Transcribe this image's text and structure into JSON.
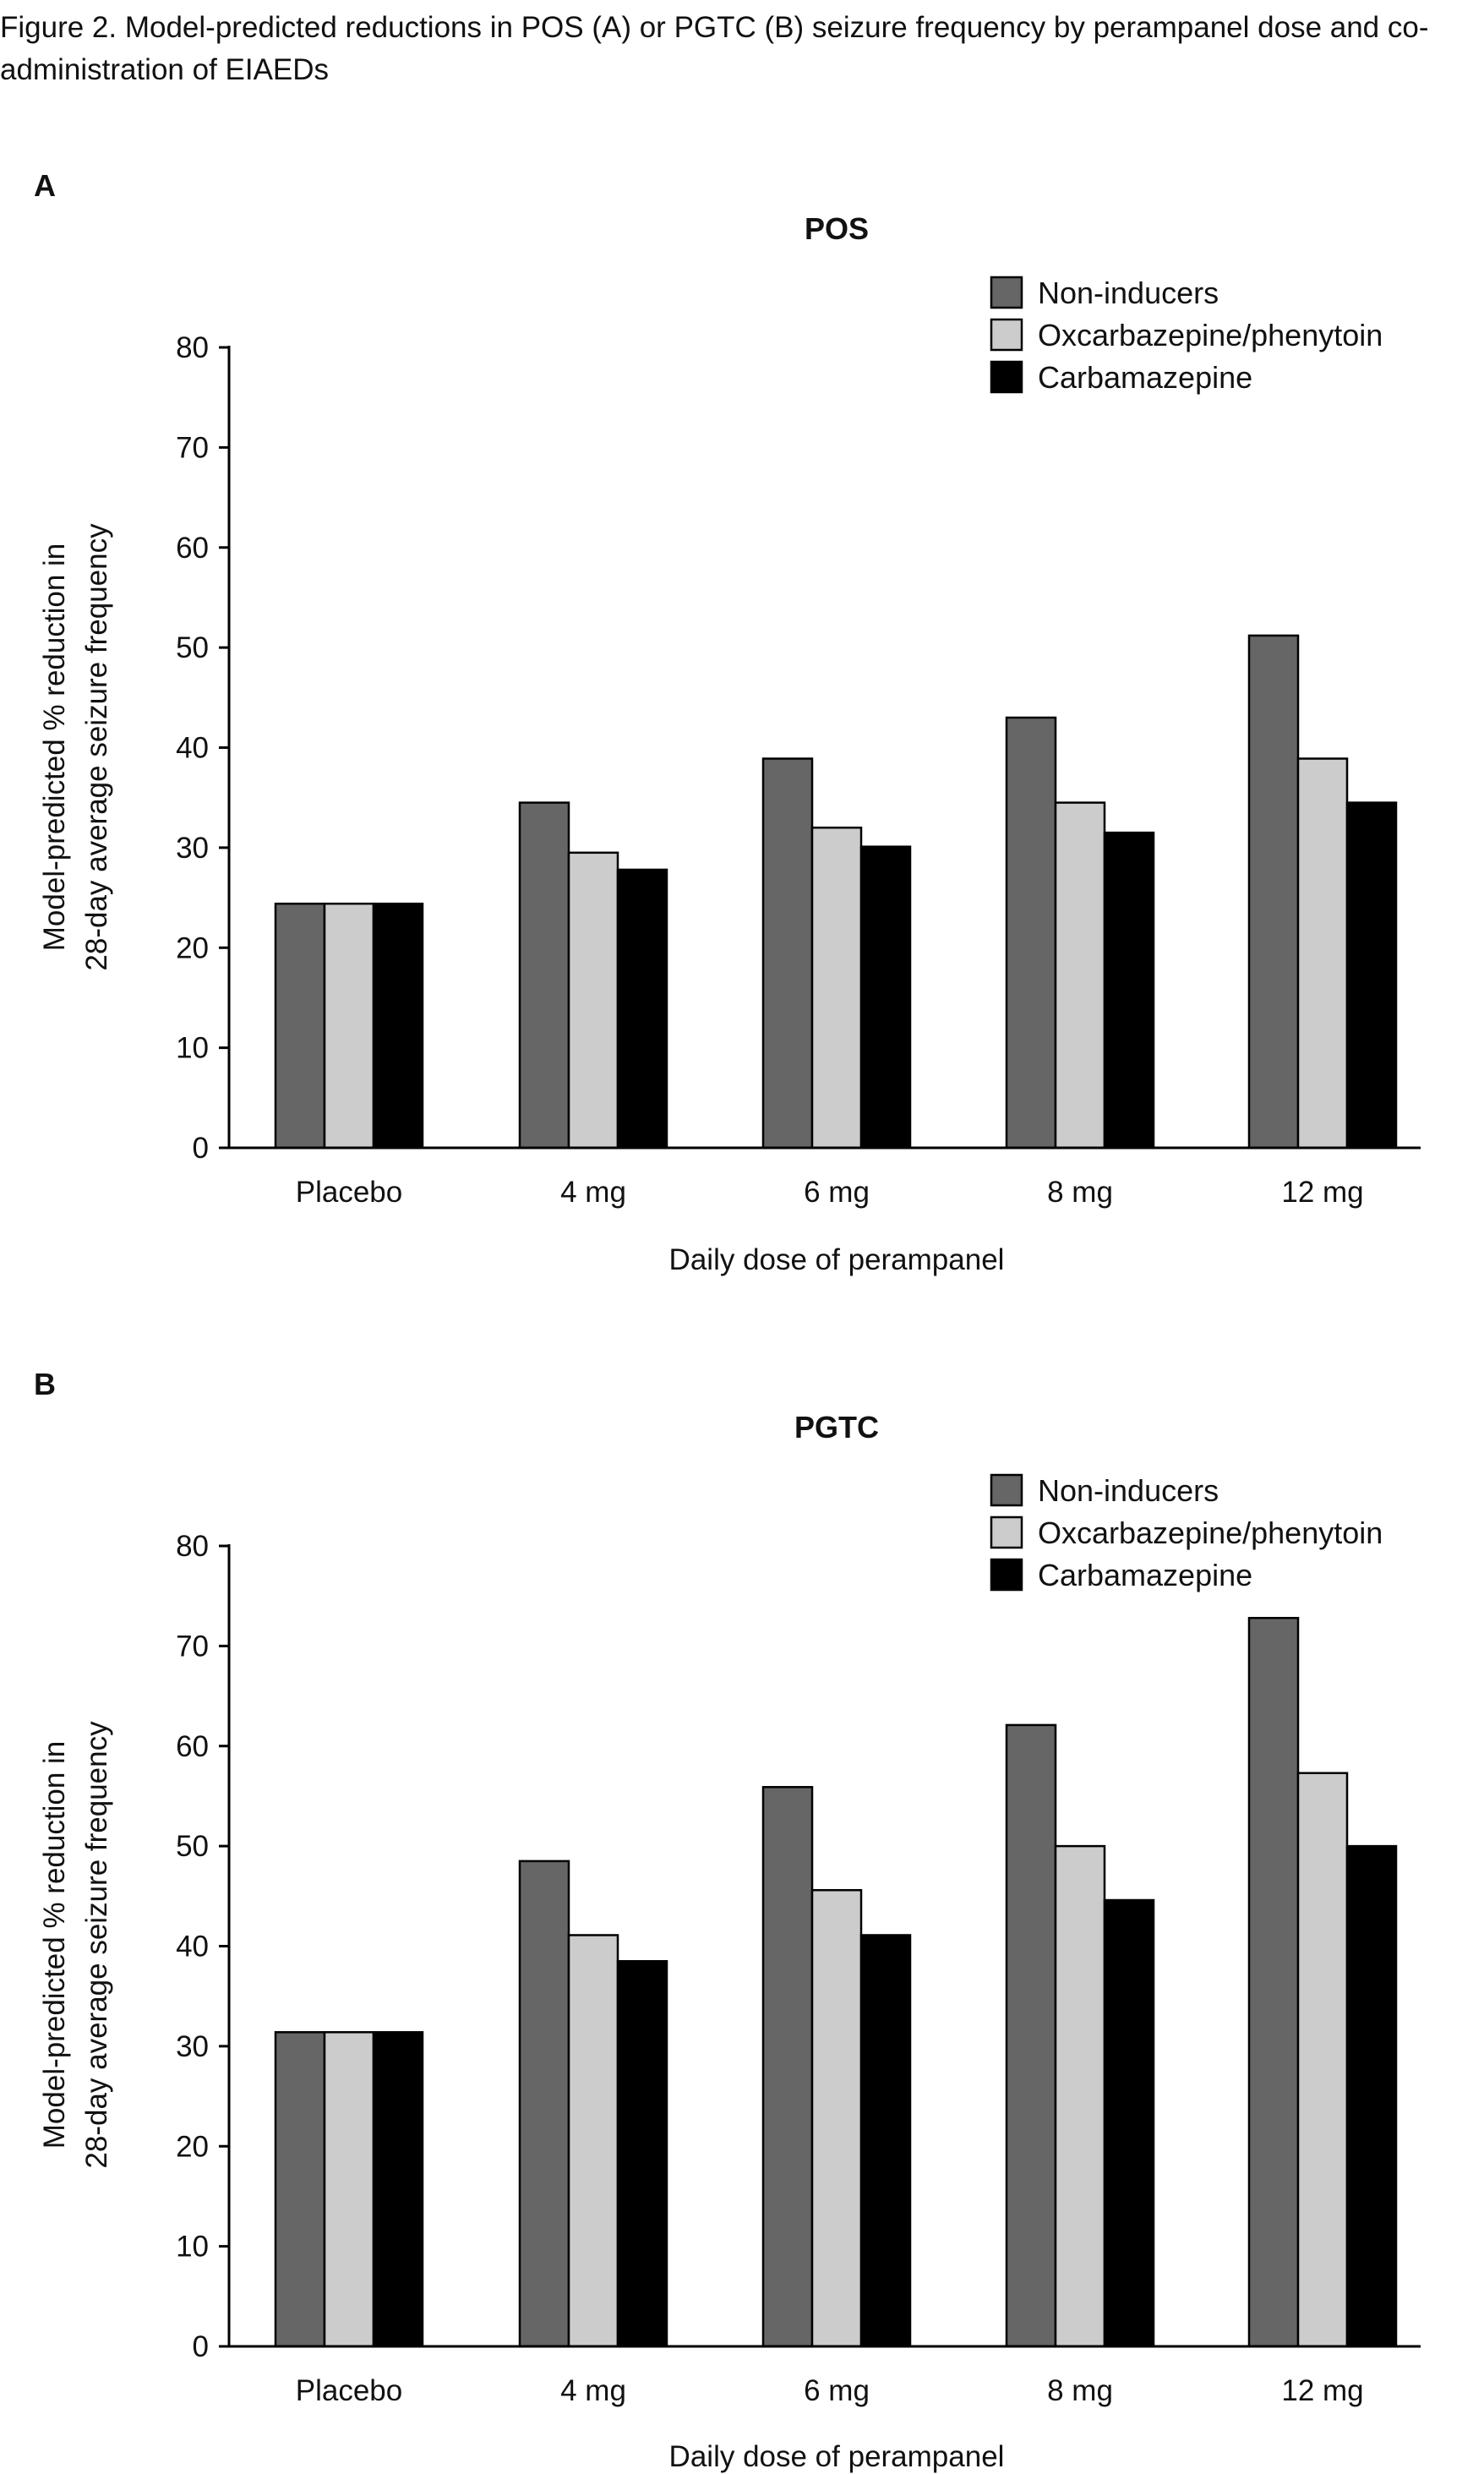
{
  "caption": "Figure 2. Model-predicted reductions in POS (A) or PGTC (B) seizure frequency by perampanel dose and co-administration of EIAEDs",
  "colors": {
    "Non-inducers": "#666666",
    "Oxcarbazepine/phenytoin": "#cccccc",
    "Carbamazepine": "#000000"
  },
  "chart_data": [
    {
      "type": "bar",
      "panel": "A",
      "title": "POS",
      "xlabel": "Daily dose of perampanel",
      "ylabel": [
        "Model-predicted % reduction in",
        "28-day average seizure frequency"
      ],
      "ylim": [
        0,
        80
      ],
      "yticks": [
        0,
        10,
        20,
        30,
        40,
        50,
        60,
        70,
        80
      ],
      "grid": false,
      "legend_position": "top-right",
      "categories": [
        "Placebo",
        "4 mg",
        "6 mg",
        "8 mg",
        "12 mg"
      ],
      "series": [
        {
          "name": "Non-inducers",
          "values": [
            24.4,
            34.5,
            38.9,
            43.0,
            51.2
          ]
        },
        {
          "name": "Oxcarbazepine/phenytoin",
          "values": [
            24.4,
            29.5,
            32.0,
            34.5,
            38.9
          ]
        },
        {
          "name": "Carbamazepine",
          "values": [
            24.4,
            27.8,
            30.1,
            31.5,
            34.5
          ]
        }
      ]
    },
    {
      "type": "bar",
      "panel": "B",
      "title": "PGTC",
      "xlabel": "Daily dose of perampanel",
      "ylabel": [
        "Model-predicted % reduction in",
        "28-day average seizure frequency"
      ],
      "ylim": [
        0,
        80
      ],
      "yticks": [
        0,
        10,
        20,
        30,
        40,
        50,
        60,
        70,
        80
      ],
      "grid": false,
      "legend_position": "top-right",
      "categories": [
        "Placebo",
        "4 mg",
        "6 mg",
        "8 mg",
        "12 mg"
      ],
      "series": [
        {
          "name": "Non-inducers",
          "values": [
            31.4,
            48.5,
            55.9,
            62.1,
            72.8
          ]
        },
        {
          "name": "Oxcarbazepine/phenytoin",
          "values": [
            31.4,
            41.1,
            45.6,
            50.0,
            57.3
          ]
        },
        {
          "name": "Carbamazepine",
          "values": [
            31.4,
            38.5,
            41.1,
            44.6,
            50.0
          ]
        }
      ]
    }
  ]
}
